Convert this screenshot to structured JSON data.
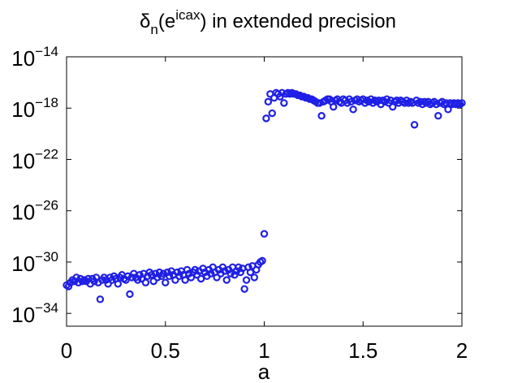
{
  "chart_data": {
    "type": "scatter",
    "title": {
      "symbol": "δ",
      "subscript": "n",
      "open": "(e",
      "superscript": "icax",
      "rest": ") in extended precision"
    },
    "xlabel": "a",
    "ylabel": "",
    "xlim": [
      0,
      2
    ],
    "y_scale": "log",
    "ylim_exponent": [
      -35,
      -14
    ],
    "x_ticks": [
      {
        "value": 0,
        "label": "0"
      },
      {
        "value": 0.5,
        "label": "0.5"
      },
      {
        "value": 1,
        "label": "1"
      },
      {
        "value": 1.5,
        "label": "1.5"
      },
      {
        "value": 2,
        "label": "2"
      }
    ],
    "y_ticks": [
      {
        "exponent": -14,
        "base": "10",
        "sup": "−14"
      },
      {
        "exponent": -18,
        "base": "10",
        "sup": "−18"
      },
      {
        "exponent": -22,
        "base": "10",
        "sup": "−22"
      },
      {
        "exponent": -26,
        "base": "10",
        "sup": "−26"
      },
      {
        "exponent": -30,
        "base": "10",
        "sup": "−30"
      },
      {
        "exponent": -34,
        "base": "10",
        "sup": "−34"
      }
    ],
    "marker": "circle-open",
    "color": "#1f1fe6",
    "series": [
      {
        "name": "delta_n",
        "points_log10": [
          [
            0.0,
            -31.8
          ],
          [
            0.01,
            -31.9
          ],
          [
            0.02,
            -31.6
          ],
          [
            0.03,
            -31.4
          ],
          [
            0.04,
            -31.5
          ],
          [
            0.05,
            -31.2
          ],
          [
            0.06,
            -31.6
          ],
          [
            0.07,
            -31.3
          ],
          [
            0.08,
            -31.5
          ],
          [
            0.09,
            -31.4
          ],
          [
            0.1,
            -31.5
          ],
          [
            0.11,
            -31.3
          ],
          [
            0.12,
            -31.7
          ],
          [
            0.13,
            -31.3
          ],
          [
            0.14,
            -31.5
          ],
          [
            0.15,
            -31.2
          ],
          [
            0.16,
            -31.6
          ],
          [
            0.17,
            -32.9
          ],
          [
            0.18,
            -31.4
          ],
          [
            0.19,
            -31.2
          ],
          [
            0.2,
            -31.4
          ],
          [
            0.21,
            -31.7
          ],
          [
            0.22,
            -31.2
          ],
          [
            0.23,
            -31.4
          ],
          [
            0.24,
            -31.1
          ],
          [
            0.25,
            -31.3
          ],
          [
            0.26,
            -31.7
          ],
          [
            0.27,
            -31.2
          ],
          [
            0.28,
            -31.0
          ],
          [
            0.29,
            -31.3
          ],
          [
            0.3,
            -31.4
          ],
          [
            0.31,
            -31.1
          ],
          [
            0.32,
            -32.5
          ],
          [
            0.33,
            -31.2
          ],
          [
            0.34,
            -30.9
          ],
          [
            0.35,
            -31.2
          ],
          [
            0.36,
            -31.4
          ],
          [
            0.37,
            -31.0
          ],
          [
            0.38,
            -31.3
          ],
          [
            0.39,
            -30.9
          ],
          [
            0.4,
            -31.6
          ],
          [
            0.41,
            -31.1
          ],
          [
            0.42,
            -30.8
          ],
          [
            0.43,
            -31.0
          ],
          [
            0.44,
            -31.5
          ],
          [
            0.45,
            -30.9
          ],
          [
            0.46,
            -31.2
          ],
          [
            0.47,
            -30.8
          ],
          [
            0.48,
            -31.1
          ],
          [
            0.49,
            -30.9
          ],
          [
            0.5,
            -31.6
          ],
          [
            0.51,
            -30.8
          ],
          [
            0.52,
            -31.1
          ],
          [
            0.53,
            -30.7
          ],
          [
            0.54,
            -31.0
          ],
          [
            0.55,
            -31.4
          ],
          [
            0.56,
            -30.8
          ],
          [
            0.57,
            -31.1
          ],
          [
            0.58,
            -30.7
          ],
          [
            0.59,
            -31.0
          ],
          [
            0.6,
            -31.4
          ],
          [
            0.61,
            -30.6
          ],
          [
            0.62,
            -30.9
          ],
          [
            0.63,
            -31.2
          ],
          [
            0.64,
            -30.8
          ],
          [
            0.65,
            -30.6
          ],
          [
            0.66,
            -31.0
          ],
          [
            0.67,
            -30.7
          ],
          [
            0.68,
            -31.3
          ],
          [
            0.69,
            -30.5
          ],
          [
            0.7,
            -30.8
          ],
          [
            0.71,
            -31.1
          ],
          [
            0.72,
            -30.6
          ],
          [
            0.73,
            -30.9
          ],
          [
            0.74,
            -30.4
          ],
          [
            0.75,
            -30.8
          ],
          [
            0.76,
            -31.2
          ],
          [
            0.77,
            -30.6
          ],
          [
            0.78,
            -30.9
          ],
          [
            0.79,
            -30.4
          ],
          [
            0.8,
            -30.7
          ],
          [
            0.81,
            -31.4
          ],
          [
            0.82,
            -30.6
          ],
          [
            0.83,
            -30.9
          ],
          [
            0.84,
            -30.4
          ],
          [
            0.85,
            -31.0
          ],
          [
            0.86,
            -30.7
          ],
          [
            0.87,
            -30.4
          ],
          [
            0.88,
            -30.8
          ],
          [
            0.89,
            -30.5
          ],
          [
            0.9,
            -32.1
          ],
          [
            0.91,
            -31.4
          ],
          [
            0.92,
            -30.4
          ],
          [
            0.93,
            -30.8
          ],
          [
            0.94,
            -30.3
          ],
          [
            0.95,
            -31.2
          ],
          [
            0.96,
            -30.6
          ],
          [
            0.97,
            -30.2
          ],
          [
            0.98,
            -30.0
          ],
          [
            0.99,
            -29.9
          ],
          [
            1.0,
            -27.8
          ],
          [
            1.01,
            -18.8
          ],
          [
            1.02,
            -17.5
          ],
          [
            1.03,
            -16.9
          ],
          [
            1.04,
            -18.4
          ],
          [
            1.05,
            -17.2
          ],
          [
            1.06,
            -16.8
          ],
          [
            1.07,
            -16.9
          ],
          [
            1.08,
            -17.1
          ],
          [
            1.09,
            -16.8
          ],
          [
            1.1,
            -17.6
          ],
          [
            1.11,
            -16.9
          ],
          [
            1.12,
            -16.8
          ],
          [
            1.13,
            -16.9
          ],
          [
            1.14,
            -16.8
          ],
          [
            1.15,
            -16.9
          ],
          [
            1.16,
            -16.9
          ],
          [
            1.17,
            -17.0
          ],
          [
            1.18,
            -17.0
          ],
          [
            1.19,
            -17.1
          ],
          [
            1.2,
            -17.1
          ],
          [
            1.21,
            -17.2
          ],
          [
            1.22,
            -17.2
          ],
          [
            1.23,
            -17.3
          ],
          [
            1.24,
            -17.3
          ],
          [
            1.25,
            -17.4
          ],
          [
            1.26,
            -17.5
          ],
          [
            1.27,
            -17.6
          ],
          [
            1.28,
            -17.6
          ],
          [
            1.29,
            -18.6
          ],
          [
            1.3,
            -17.5
          ],
          [
            1.31,
            -17.4
          ],
          [
            1.32,
            -17.3
          ],
          [
            1.33,
            -17.3
          ],
          [
            1.34,
            -17.5
          ],
          [
            1.35,
            -17.9
          ],
          [
            1.36,
            -17.4
          ],
          [
            1.37,
            -17.3
          ],
          [
            1.38,
            -17.5
          ],
          [
            1.39,
            -17.6
          ],
          [
            1.4,
            -17.3
          ],
          [
            1.41,
            -17.4
          ],
          [
            1.42,
            -17.6
          ],
          [
            1.43,
            -17.3
          ],
          [
            1.44,
            -17.5
          ],
          [
            1.45,
            -18.1
          ],
          [
            1.46,
            -17.4
          ],
          [
            1.47,
            -17.3
          ],
          [
            1.48,
            -17.5
          ],
          [
            1.49,
            -17.4
          ],
          [
            1.5,
            -17.3
          ],
          [
            1.51,
            -17.6
          ],
          [
            1.52,
            -17.4
          ],
          [
            1.53,
            -17.5
          ],
          [
            1.54,
            -17.3
          ],
          [
            1.55,
            -17.6
          ],
          [
            1.56,
            -17.4
          ],
          [
            1.57,
            -17.5
          ],
          [
            1.58,
            -17.4
          ],
          [
            1.59,
            -17.7
          ],
          [
            1.6,
            -17.4
          ],
          [
            1.61,
            -17.5
          ],
          [
            1.62,
            -17.3
          ],
          [
            1.63,
            -17.6
          ],
          [
            1.64,
            -17.4
          ],
          [
            1.65,
            -17.9
          ],
          [
            1.66,
            -17.5
          ],
          [
            1.67,
            -17.4
          ],
          [
            1.68,
            -17.6
          ],
          [
            1.69,
            -17.4
          ],
          [
            1.7,
            -17.5
          ],
          [
            1.71,
            -17.6
          ],
          [
            1.72,
            -17.4
          ],
          [
            1.73,
            -17.6
          ],
          [
            1.74,
            -17.5
          ],
          [
            1.75,
            -17.6
          ],
          [
            1.76,
            -19.3
          ],
          [
            1.77,
            -17.4
          ],
          [
            1.78,
            -17.6
          ],
          [
            1.79,
            -17.5
          ],
          [
            1.8,
            -17.7
          ],
          [
            1.81,
            -17.5
          ],
          [
            1.82,
            -17.6
          ],
          [
            1.83,
            -17.5
          ],
          [
            1.84,
            -17.7
          ],
          [
            1.85,
            -17.6
          ],
          [
            1.86,
            -17.5
          ],
          [
            1.87,
            -17.7
          ],
          [
            1.88,
            -18.6
          ],
          [
            1.89,
            -17.6
          ],
          [
            1.9,
            -17.5
          ],
          [
            1.91,
            -17.7
          ],
          [
            1.92,
            -17.6
          ],
          [
            1.93,
            -18.1
          ],
          [
            1.94,
            -17.6
          ],
          [
            1.95,
            -17.7
          ],
          [
            1.96,
            -17.6
          ],
          [
            1.97,
            -17.7
          ],
          [
            1.98,
            -17.6
          ],
          [
            1.99,
            -17.7
          ],
          [
            2.0,
            -17.6
          ]
        ]
      }
    ]
  }
}
